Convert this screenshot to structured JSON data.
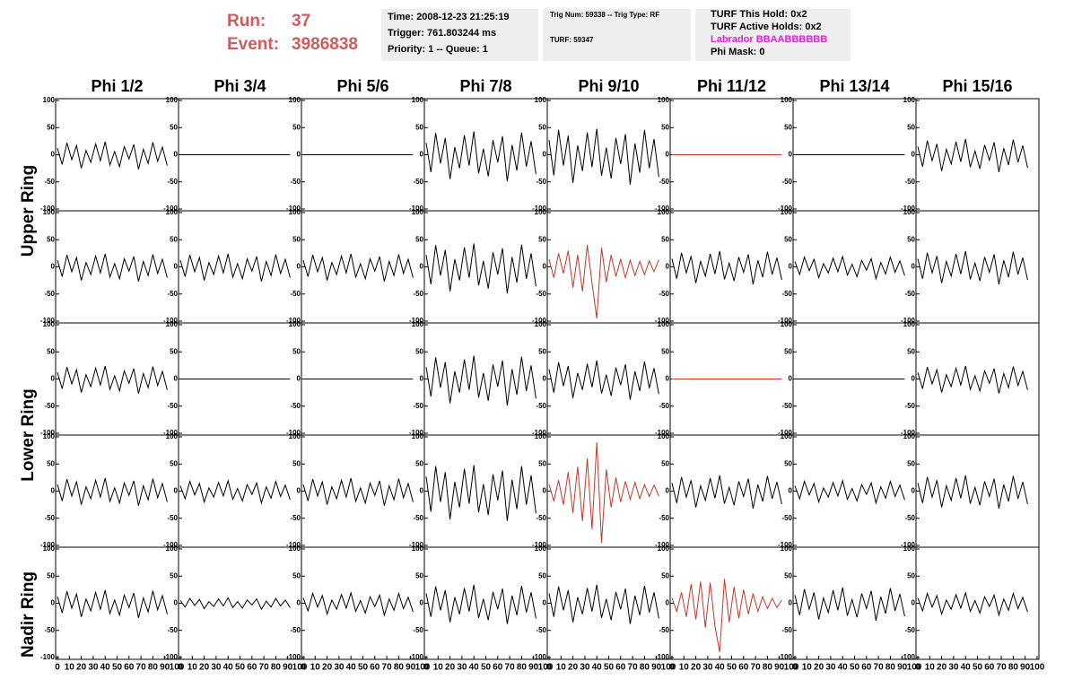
{
  "header": {
    "run_label": "Run:",
    "run": "37",
    "event_label": "Event:",
    "event": "3986838",
    "time": "Time: 2008-12-23 21:25:19",
    "trigger": "Trigger: 761.803244 ms",
    "priority": "Priority: 1 -- Queue: 1",
    "trig": "Trig Num: 59338 -- Trig Type: RF",
    "turf": "TURF: 59347",
    "hold": "TURF This Hold: 0x2",
    "active": "TURF Active Holds: 0x2",
    "labrador": "Labrador BBAABBBBBB",
    "phimask": "Phi Mask: 0"
  },
  "columns": [
    "Phi 1/2",
    "Phi 3/4",
    "Phi 5/6",
    "Phi 7/8",
    "Phi 9/10",
    "Phi 11/12",
    "Phi 13/14",
    "Phi 15/16"
  ],
  "rings": [
    "Upper Ring",
    "Lower Ring",
    "Nadir Ring"
  ],
  "ylim": [
    -100,
    100
  ],
  "yticks": [
    -100,
    -50,
    0,
    50,
    100
  ],
  "xlim": [
    0,
    100
  ],
  "xticks": [
    0,
    10,
    20,
    30,
    40,
    50,
    60,
    70,
    80,
    90,
    100
  ],
  "x": [
    0,
    4,
    8,
    12,
    16,
    20,
    24,
    28,
    32,
    36,
    40,
    44,
    48,
    52,
    56,
    60,
    64,
    68,
    72,
    76,
    80,
    84,
    88,
    92
  ],
  "panels": [
    [
      {
        "color": "#000000",
        "values": [
          12,
          -18,
          22,
          -9,
          17,
          -25,
          8,
          -14,
          20,
          -11,
          24,
          -19,
          6,
          -22,
          15,
          -8,
          19,
          -27,
          10,
          -16,
          23,
          -12,
          14,
          -20
        ]
      },
      {
        "color": "#000000",
        "values": [
          0,
          0,
          0,
          0,
          0,
          0,
          0,
          0,
          0,
          0,
          0,
          0,
          0,
          0,
          0,
          0,
          0,
          0,
          0,
          0,
          0,
          0,
          0,
          0
        ]
      },
      {
        "color": "#000000",
        "values": [
          0,
          0,
          0,
          0,
          0,
          0,
          0,
          0,
          0,
          0,
          0,
          0,
          0,
          0,
          0,
          0,
          0,
          0,
          0,
          0,
          0,
          0,
          0,
          0
        ]
      },
      {
        "color": "#000000",
        "values": [
          22,
          -32,
          40,
          -16,
          31,
          -45,
          14,
          -25,
          36,
          -20,
          43,
          -34,
          11,
          -40,
          27,
          -14,
          34,
          -49,
          18,
          -29,
          41,
          -22,
          25,
          -36
        ]
      },
      {
        "color": "#000000",
        "values": [
          27,
          -38,
          46,
          -20,
          35,
          -52,
          17,
          -30,
          41,
          -23,
          48,
          -39,
          13,
          -44,
          31,
          -17,
          38,
          -55,
          21,
          -33,
          46,
          -25,
          29,
          -41
        ]
      },
      {
        "color": "#c0392b",
        "values": [
          0,
          0,
          0,
          0,
          0,
          0,
          0,
          0,
          0,
          0,
          0,
          0,
          0,
          0,
          0,
          0,
          0,
          0,
          0,
          0,
          0,
          0,
          0,
          0
        ]
      },
      {
        "color": "#000000",
        "values": [
          0,
          0,
          0,
          0,
          0,
          0,
          0,
          0,
          0,
          0,
          0,
          0,
          0,
          0,
          0,
          0,
          0,
          0,
          0,
          0,
          0,
          0,
          0,
          0
        ]
      },
      {
        "color": "#000000",
        "values": [
          15,
          -22,
          26,
          -11,
          20,
          -30,
          10,
          -17,
          24,
          -13,
          29,
          -23,
          7,
          -26,
          18,
          -10,
          23,
          -32,
          12,
          -19,
          28,
          -14,
          17,
          -24
        ]
      }
    ],
    [
      {
        "color": "#000000",
        "values": [
          12,
          -18,
          22,
          -9,
          17,
          -25,
          8,
          -14,
          20,
          -11,
          24,
          -19,
          6,
          -22,
          15,
          -8,
          19,
          -27,
          10,
          -16,
          23,
          -12,
          14,
          -20
        ]
      },
      {
        "color": "#000000",
        "values": [
          12,
          -18,
          22,
          -9,
          17,
          -25,
          8,
          -14,
          20,
          -11,
          24,
          -19,
          6,
          -22,
          15,
          -8,
          19,
          -27,
          10,
          -16,
          23,
          -12,
          14,
          -20
        ]
      },
      {
        "color": "#000000",
        "values": [
          12,
          -18,
          22,
          -9,
          17,
          -25,
          8,
          -14,
          20,
          -11,
          24,
          -19,
          6,
          -22,
          15,
          -8,
          19,
          -27,
          10,
          -16,
          23,
          -12,
          14,
          -20
        ]
      },
      {
        "color": "#000000",
        "values": [
          22,
          -32,
          40,
          -16,
          31,
          -45,
          14,
          -25,
          36,
          -20,
          43,
          -34,
          11,
          -40,
          27,
          -14,
          34,
          -49,
          18,
          -29,
          41,
          -22,
          25,
          -36
        ]
      },
      {
        "color": "#c0392b",
        "values": [
          14,
          -20,
          25,
          -12,
          30,
          -38,
          22,
          -45,
          40,
          -30,
          -95,
          35,
          -28,
          22,
          -18,
          14,
          -20,
          12,
          -16,
          10,
          -14,
          11,
          -9,
          13
        ]
      },
      {
        "color": "#000000",
        "values": [
          15,
          -22,
          26,
          -11,
          20,
          -30,
          10,
          -17,
          24,
          -13,
          29,
          -23,
          7,
          -26,
          18,
          -10,
          23,
          -32,
          12,
          -19,
          28,
          -14,
          17,
          -24
        ]
      },
      {
        "color": "#000000",
        "values": [
          10,
          -14,
          18,
          -7,
          14,
          -20,
          6,
          -11,
          16,
          -9,
          19,
          -15,
          5,
          -18,
          12,
          -6,
          15,
          -22,
          8,
          -13,
          18,
          -10,
          11,
          -16
        ]
      },
      {
        "color": "#000000",
        "values": [
          15,
          -22,
          26,
          -11,
          20,
          -30,
          10,
          -17,
          24,
          -13,
          29,
          -23,
          7,
          -26,
          18,
          -10,
          23,
          -32,
          12,
          -19,
          28,
          -14,
          17,
          -24
        ]
      }
    ],
    [
      {
        "color": "#000000",
        "values": [
          12,
          -18,
          22,
          -9,
          17,
          -25,
          8,
          -14,
          20,
          -11,
          24,
          -19,
          6,
          -22,
          15,
          -8,
          19,
          -27,
          10,
          -16,
          23,
          -12,
          14,
          -20
        ]
      },
      {
        "color": "#000000",
        "values": [
          0,
          0,
          0,
          0,
          0,
          0,
          0,
          0,
          0,
          0,
          0,
          0,
          0,
          0,
          0,
          0,
          0,
          0,
          0,
          0,
          0,
          0,
          0,
          0
        ]
      },
      {
        "color": "#000000",
        "values": [
          0,
          0,
          0,
          0,
          0,
          0,
          0,
          0,
          0,
          0,
          0,
          0,
          0,
          0,
          0,
          0,
          0,
          0,
          0,
          0,
          0,
          0,
          0,
          0
        ]
      },
      {
        "color": "#000000",
        "values": [
          22,
          -32,
          40,
          -16,
          31,
          -45,
          14,
          -25,
          36,
          -20,
          43,
          -34,
          11,
          -40,
          27,
          -14,
          34,
          -49,
          18,
          -29,
          41,
          -22,
          25,
          -36
        ]
      },
      {
        "color": "#000000",
        "values": [
          18,
          -25,
          31,
          -13,
          24,
          -35,
          11,
          -20,
          28,
          -15,
          34,
          -27,
          8,
          -31,
          21,
          -11,
          27,
          -38,
          14,
          -22,
          32,
          -17,
          20,
          -28
        ]
      },
      {
        "color": "#c0392b",
        "values": [
          0,
          0,
          0,
          0,
          0,
          0,
          0,
          0,
          0,
          0,
          0,
          0,
          0,
          0,
          0,
          0,
          0,
          0,
          0,
          0,
          0,
          0,
          0,
          0
        ]
      },
      {
        "color": "#000000",
        "values": [
          0,
          0,
          0,
          0,
          0,
          0,
          0,
          0,
          0,
          0,
          0,
          0,
          0,
          0,
          0,
          0,
          0,
          0,
          0,
          0,
          0,
          0,
          0,
          0
        ]
      },
      {
        "color": "#000000",
        "values": [
          12,
          -18,
          22,
          -9,
          17,
          -25,
          8,
          -14,
          20,
          -11,
          24,
          -19,
          6,
          -22,
          15,
          -8,
          19,
          -27,
          10,
          -16,
          23,
          -12,
          14,
          -20
        ]
      }
    ],
    [
      {
        "color": "#000000",
        "values": [
          12,
          -18,
          22,
          -9,
          17,
          -25,
          8,
          -14,
          20,
          -11,
          24,
          -19,
          6,
          -22,
          15,
          -8,
          19,
          -27,
          10,
          -16,
          23,
          -12,
          14,
          -20
        ]
      },
      {
        "color": "#000000",
        "values": [
          10,
          -14,
          18,
          -7,
          14,
          -20,
          6,
          -11,
          16,
          -9,
          19,
          -15,
          5,
          -18,
          12,
          -6,
          15,
          -22,
          8,
          -13,
          18,
          -10,
          11,
          -16
        ]
      },
      {
        "color": "#000000",
        "values": [
          12,
          -18,
          22,
          -9,
          17,
          -25,
          8,
          -14,
          20,
          -11,
          24,
          -19,
          6,
          -22,
          15,
          -8,
          19,
          -27,
          10,
          -16,
          23,
          -12,
          14,
          -20
        ]
      },
      {
        "color": "#000000",
        "values": [
          27,
          -38,
          46,
          -20,
          35,
          -52,
          17,
          -30,
          41,
          -23,
          48,
          -39,
          13,
          -44,
          31,
          -17,
          38,
          -55,
          21,
          -33,
          46,
          -25,
          29,
          -41
        ]
      },
      {
        "color": "#c0392b",
        "values": [
          12,
          -18,
          20,
          -25,
          35,
          -40,
          45,
          -55,
          60,
          -70,
          90,
          -95,
          40,
          -30,
          25,
          -20,
          18,
          -15,
          16,
          -14,
          12,
          -10,
          11,
          -9
        ]
      },
      {
        "color": "#000000",
        "values": [
          15,
          -22,
          26,
          -11,
          20,
          -30,
          10,
          -17,
          24,
          -13,
          29,
          -23,
          7,
          -26,
          18,
          -10,
          23,
          -32,
          12,
          -19,
          28,
          -14,
          17,
          -24
        ]
      },
      {
        "color": "#000000",
        "values": [
          10,
          -14,
          18,
          -7,
          14,
          -20,
          6,
          -11,
          16,
          -9,
          19,
          -15,
          5,
          -18,
          12,
          -6,
          15,
          -22,
          8,
          -13,
          18,
          -10,
          11,
          -16
        ]
      },
      {
        "color": "#000000",
        "values": [
          15,
          -22,
          26,
          -11,
          20,
          -30,
          10,
          -17,
          24,
          -13,
          29,
          -23,
          7,
          -26,
          18,
          -10,
          23,
          -32,
          12,
          -19,
          28,
          -14,
          17,
          -24
        ]
      }
    ],
    [
      {
        "color": "#000000",
        "values": [
          12,
          -18,
          22,
          -9,
          17,
          -25,
          8,
          -14,
          20,
          -11,
          24,
          -19,
          6,
          -22,
          15,
          -8,
          19,
          -27,
          10,
          -16,
          23,
          -12,
          14,
          -20
        ]
      },
      {
        "color": "#000000",
        "values": [
          5,
          -7,
          9,
          -4,
          7,
          -10,
          3,
          -6,
          8,
          -5,
          10,
          -8,
          3,
          -9,
          6,
          -3,
          8,
          -11,
          4,
          -7,
          9,
          -5,
          6,
          -8
        ]
      },
      {
        "color": "#000000",
        "values": [
          10,
          -14,
          18,
          -7,
          14,
          -20,
          6,
          -11,
          16,
          -9,
          19,
          -15,
          5,
          -18,
          12,
          -6,
          15,
          -22,
          8,
          -13,
          18,
          -10,
          11,
          -16
        ]
      },
      {
        "color": "#000000",
        "values": [
          18,
          -25,
          31,
          -13,
          24,
          -35,
          11,
          -20,
          28,
          -15,
          34,
          -27,
          8,
          -31,
          21,
          -11,
          27,
          -38,
          14,
          -22,
          32,
          -17,
          20,
          -28
        ]
      },
      {
        "color": "#000000",
        "values": [
          18,
          -25,
          31,
          -13,
          24,
          -35,
          11,
          -20,
          28,
          -15,
          34,
          -27,
          8,
          -31,
          21,
          -11,
          27,
          -38,
          14,
          -22,
          32,
          -17,
          20,
          -28
        ]
      },
      {
        "color": "#c0392b",
        "values": [
          10,
          -15,
          20,
          -25,
          35,
          -30,
          40,
          -45,
          38,
          -42,
          -90,
          45,
          -35,
          30,
          -28,
          25,
          -20,
          18,
          -15,
          12,
          -10,
          9,
          -8,
          6
        ]
      },
      {
        "color": "#000000",
        "values": [
          15,
          -22,
          26,
          -11,
          20,
          -30,
          10,
          -17,
          24,
          -13,
          29,
          -23,
          7,
          -26,
          18,
          -10,
          23,
          -32,
          12,
          -19,
          28,
          -14,
          17,
          -24
        ]
      },
      {
        "color": "#000000",
        "values": [
          10,
          -14,
          18,
          -7,
          14,
          -20,
          6,
          -11,
          16,
          -9,
          19,
          -15,
          5,
          -18,
          12,
          -6,
          15,
          -22,
          8,
          -13,
          18,
          -10,
          11,
          -16
        ]
      }
    ]
  ]
}
